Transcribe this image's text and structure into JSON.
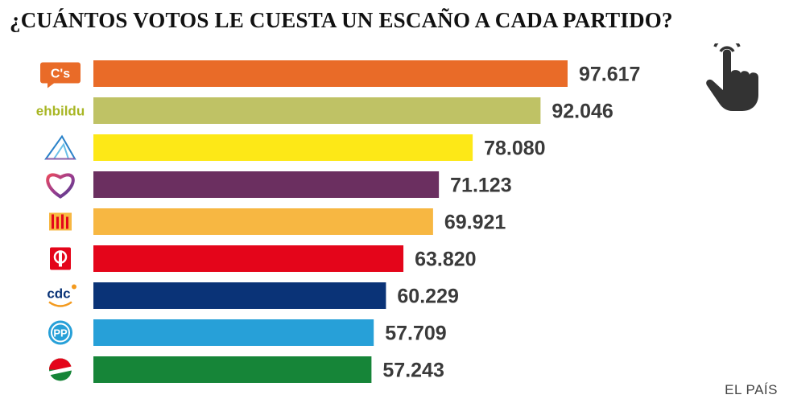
{
  "title": "¿CUÁNTOS VOTOS LE CUESTA UN ESCAÑO A CADA PARTIDO?",
  "credit": "EL PAÍS",
  "hand_icon": "tap-hand-icon",
  "chart_data": {
    "type": "bar",
    "orientation": "horizontal",
    "title": "¿CUÁNTOS VOTOS LE CUESTA UN ESCAÑO A CADA PARTIDO?",
    "categories": [
      "C's",
      "ehbildu",
      "Compromís/Podemos",
      "Unidos Podemos",
      "ERC",
      "PSOE",
      "cdc",
      "PP",
      "PNV"
    ],
    "values": [
      97617,
      92046,
      78080,
      71123,
      69921,
      63820,
      60229,
      57709,
      57243
    ],
    "labels": [
      "97.617",
      "92.046",
      "78.080",
      "71.123",
      "69.921",
      "63.820",
      "60.229",
      "57.709",
      "57.243"
    ],
    "colors": [
      "#e96b28",
      "#bfc265",
      "#fde817",
      "#6b2f60",
      "#f7b742",
      "#e4051a",
      "#0a3377",
      "#27a0d8",
      "#168538"
    ],
    "logos": [
      {
        "icon": "cs-logo-icon",
        "text": "C's"
      },
      {
        "icon": "ehbildu-logo-icon",
        "text": "ehbildu"
      },
      {
        "icon": "podemos-coalition-logo-icon",
        "text": ""
      },
      {
        "icon": "heart-logo-icon",
        "text": ""
      },
      {
        "icon": "erc-logo-icon",
        "text": ""
      },
      {
        "icon": "psoe-logo-icon",
        "text": ""
      },
      {
        "icon": "cdc-logo-icon",
        "text": "cdc"
      },
      {
        "icon": "pp-logo-icon",
        "text": "PP"
      },
      {
        "icon": "pnv-logo-icon",
        "text": ""
      }
    ],
    "xlim": [
      0,
      100000
    ],
    "xlabel": "",
    "ylabel": ""
  }
}
